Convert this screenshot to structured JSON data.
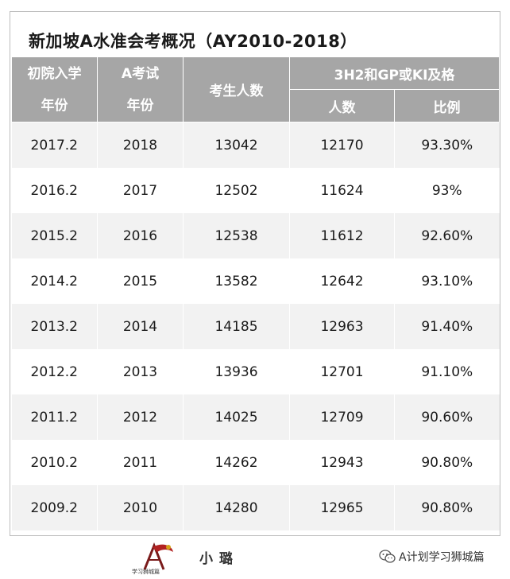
{
  "title": "新加坡A水准会考概况（AY2010-2018）",
  "header": {
    "col1_line1": "初院入学",
    "col1_line2": "年份",
    "col2_line1": "A考试",
    "col2_line2": "年份",
    "col3": "考生人数",
    "group": "3H2和GP或KI及格",
    "sub1": "人数",
    "sub2": "比例"
  },
  "rows": [
    {
      "entry": "2017.2",
      "exam": "2018",
      "candidates": "13042",
      "passed": "12170",
      "ratio": "93.30%"
    },
    {
      "entry": "2016.2",
      "exam": "2017",
      "candidates": "12502",
      "passed": "11624",
      "ratio": "93%"
    },
    {
      "entry": "2015.2",
      "exam": "2016",
      "candidates": "12538",
      "passed": "11612",
      "ratio": "92.60%"
    },
    {
      "entry": "2014.2",
      "exam": "2015",
      "candidates": "13582",
      "passed": "12642",
      "ratio": "93.10%"
    },
    {
      "entry": "2013.2",
      "exam": "2014",
      "candidates": "14185",
      "passed": "12963",
      "ratio": "91.40%"
    },
    {
      "entry": "2012.2",
      "exam": "2013",
      "candidates": "13936",
      "passed": "12701",
      "ratio": "91.10%"
    },
    {
      "entry": "2011.2",
      "exam": "2012",
      "candidates": "14025",
      "passed": "12709",
      "ratio": "90.60%"
    },
    {
      "entry": "2010.2",
      "exam": "2011",
      "candidates": "14262",
      "passed": "12943",
      "ratio": "90.80%"
    },
    {
      "entry": "2009.2",
      "exam": "2010",
      "candidates": "14280",
      "passed": "12965",
      "ratio": "90.80%"
    }
  ],
  "footer": {
    "logo_caption": "学习狮城篇",
    "author": "小璐",
    "account": "A计划学习狮城篇",
    "logo_icon": "lion-city-logo-icon",
    "wechat_icon": "wechat-icon"
  },
  "colors": {
    "header_bg": "#a6a6a6",
    "row_alt_bg": "#f2f2f2"
  }
}
